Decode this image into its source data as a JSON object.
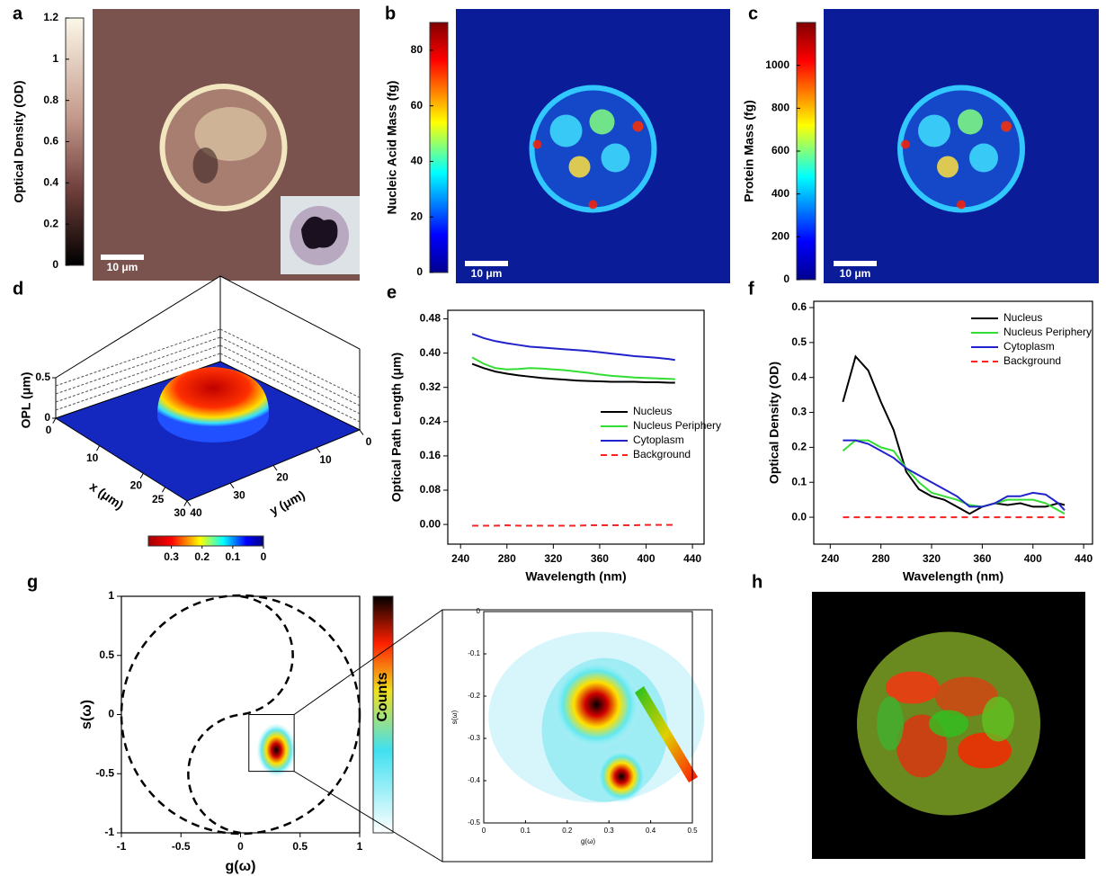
{
  "chart_data": [
    {
      "panel": "a",
      "type": "image",
      "colorbar_label": "Optical Density (OD)",
      "colorbar_lim": [
        0,
        1.2
      ],
      "colorbar_ticks": [
        0,
        0.2,
        0.4,
        0.6,
        0.8,
        1,
        1.2
      ],
      "scale_bar": "10 μm"
    },
    {
      "panel": "b",
      "type": "image",
      "colorbar_label": "Nucleic Acid Mass (fg)",
      "colorbar_lim": [
        0,
        90
      ],
      "colorbar_ticks": [
        0,
        20,
        40,
        60,
        80
      ],
      "scale_bar": "10 μm"
    },
    {
      "panel": "c",
      "type": "image",
      "colorbar_label": "Protein Mass (fg)",
      "colorbar_lim": [
        0,
        1200
      ],
      "colorbar_ticks": [
        0,
        200,
        400,
        600,
        800,
        1000
      ],
      "scale_bar": "10 μm"
    },
    {
      "panel": "d",
      "type": "surface3d",
      "zlabel": "OPL (μm)",
      "zlim": [
        0,
        0.5
      ],
      "zticks": [
        0,
        0.5
      ],
      "xlabel": "x (μm)",
      "xlim": [
        0,
        30
      ],
      "xticks": [
        0,
        10,
        20,
        25,
        30
      ],
      "ylabel": "y (μm)",
      "ylim": [
        0,
        40
      ],
      "yticks": [
        0,
        10,
        20,
        30,
        40
      ],
      "colorbar_lim": [
        0.375,
        0
      ],
      "colorbar_ticks": [
        0.3,
        0.2,
        0.1,
        0
      ]
    },
    {
      "panel": "e",
      "type": "line",
      "ylabel": "Optical Path Length (μm)",
      "xlabel": "Wavelength (nm)",
      "x": [
        250,
        260,
        270,
        280,
        290,
        300,
        310,
        320,
        330,
        340,
        350,
        360,
        370,
        380,
        390,
        400,
        410,
        420,
        425
      ],
      "xlim": [
        229,
        450
      ],
      "xticks": [
        240,
        280,
        320,
        360,
        400,
        440
      ],
      "ylim": [
        -0.046,
        0.5
      ],
      "yticks": [
        {
          "value": 0,
          "label": "0.00"
        },
        {
          "value": 0.08,
          "label": "0.08"
        },
        {
          "value": 0.16,
          "label": "0.16"
        },
        {
          "value": 0.24,
          "label": "0.24"
        },
        {
          "value": 0.32,
          "label": "0.32"
        },
        {
          "value": 0.4,
          "label": "0.40"
        },
        {
          "value": 0.48,
          "label": "0.48"
        }
      ],
      "series": [
        {
          "name": "Nucleus",
          "color": "#000000",
          "values": [
            0.375,
            0.365,
            0.357,
            0.352,
            0.348,
            0.345,
            0.342,
            0.34,
            0.338,
            0.336,
            0.335,
            0.334,
            0.333,
            0.333,
            0.333,
            0.332,
            0.332,
            0.331,
            0.331
          ]
        },
        {
          "name": "Nucleus Periphery",
          "color": "#33dd33",
          "values": [
            0.39,
            0.375,
            0.365,
            0.362,
            0.363,
            0.365,
            0.364,
            0.362,
            0.36,
            0.357,
            0.354,
            0.35,
            0.347,
            0.345,
            0.343,
            0.342,
            0.341,
            0.34,
            0.339
          ]
        },
        {
          "name": "Cytoplasm",
          "color": "#2222cc",
          "values": [
            0.445,
            0.435,
            0.428,
            0.423,
            0.419,
            0.415,
            0.413,
            0.411,
            0.409,
            0.407,
            0.405,
            0.402,
            0.399,
            0.396,
            0.393,
            0.391,
            0.389,
            0.386,
            0.384
          ]
        },
        {
          "name": "Background",
          "color": "#ff2020",
          "dashed": true,
          "values": [
            -0.003,
            -0.003,
            -0.003,
            -0.002,
            -0.003,
            -0.003,
            -0.003,
            -0.003,
            -0.003,
            -0.003,
            -0.002,
            -0.002,
            -0.002,
            -0.002,
            -0.002,
            -0.001,
            -0.001,
            -0.001,
            -0.001
          ]
        }
      ]
    },
    {
      "panel": "f",
      "type": "line",
      "ylabel": "Optical Density (OD)",
      "xlabel": "Wavelength (nm)",
      "x": [
        250,
        260,
        270,
        280,
        290,
        300,
        310,
        320,
        330,
        340,
        350,
        360,
        370,
        380,
        390,
        400,
        410,
        420,
        425
      ],
      "xlim": [
        227,
        447
      ],
      "xticks": [
        240,
        280,
        320,
        360,
        400,
        440
      ],
      "ylim": [
        -0.077,
        0.618
      ],
      "yticks": [
        {
          "value": 0,
          "label": "0.0"
        },
        0.1,
        0.2,
        0.3,
        0.4,
        0.5,
        0.6
      ],
      "series": [
        {
          "name": "Nucleus",
          "color": "#000000",
          "values": [
            0.33,
            0.46,
            0.42,
            0.33,
            0.25,
            0.13,
            0.08,
            0.06,
            0.05,
            0.03,
            0.01,
            0.03,
            0.04,
            0.035,
            0.04,
            0.03,
            0.03,
            0.04,
            0.035
          ]
        },
        {
          "name": "Nucleus Periphery",
          "color": "#33dd33",
          "values": [
            0.19,
            0.22,
            0.22,
            0.2,
            0.19,
            0.14,
            0.1,
            0.07,
            0.06,
            0.05,
            0.035,
            0.03,
            0.04,
            0.05,
            0.05,
            0.05,
            0.04,
            0.02,
            0.01
          ]
        },
        {
          "name": "Cytoplasm",
          "color": "#2222cc",
          "values": [
            0.22,
            0.22,
            0.21,
            0.19,
            0.17,
            0.14,
            0.12,
            0.1,
            0.08,
            0.06,
            0.03,
            0.03,
            0.04,
            0.06,
            0.06,
            0.07,
            0.065,
            0.04,
            0.02
          ]
        },
        {
          "name": "Background",
          "color": "#ff2020",
          "dashed": true,
          "values": [
            0,
            0,
            0,
            0,
            0,
            0,
            0,
            0,
            0,
            0,
            0,
            0,
            0,
            0,
            0,
            0,
            0,
            0,
            0
          ]
        }
      ]
    },
    {
      "panel": "g",
      "type": "phasor",
      "xlabel": "g(ω)",
      "ylabel": "s(ω)",
      "xlim": [
        -1,
        1
      ],
      "ylim": [
        -1,
        1
      ],
      "xticks": [
        -1,
        -0.5,
        0,
        0.5,
        1
      ],
      "yticks": [
        -1,
        -0.5,
        0,
        0.5,
        1
      ],
      "colorbar_label": "Counts"
    },
    {
      "type": "phasor-inset",
      "xlabel": "g(ω)",
      "ylabel": "s(ω)",
      "xlim": [
        0,
        0.5
      ],
      "ylim": [
        -0.5,
        0
      ],
      "xticks": [
        0,
        0.1,
        0.2,
        0.3,
        0.4,
        0.5
      ],
      "yticks": [
        0,
        -0.1,
        -0.2,
        -0.3,
        -0.4,
        -0.5
      ]
    },
    {
      "panel": "h",
      "type": "image"
    }
  ]
}
